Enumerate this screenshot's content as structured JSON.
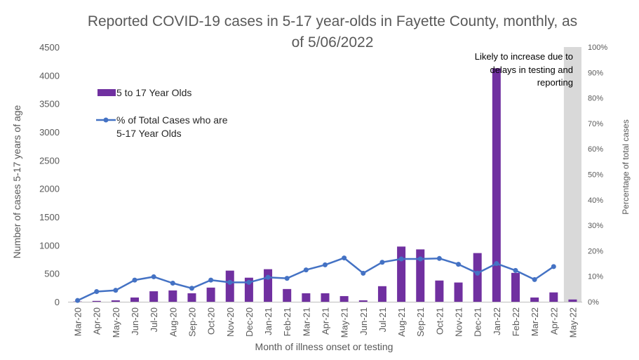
{
  "chart_data": {
    "type": "bar",
    "title_line1": "Reported COVID-19 cases in 5-17 year-olds in Fayette County, monthly, as",
    "title_line2": "of 5/06/2022",
    "xlabel": "Month of illness onset or testing",
    "ylabel": "Number of cases 5-17 years of age",
    "y2label": "Percentage of total cases",
    "ylim": [
      0,
      4500
    ],
    "y2lim": [
      0,
      100
    ],
    "yticks": [
      "0",
      "500",
      "1000",
      "1500",
      "2000",
      "2500",
      "3000",
      "3500",
      "4000",
      "4500"
    ],
    "y2ticks": [
      "0%",
      "10%",
      "20%",
      "30%",
      "40%",
      "50%",
      "60%",
      "70%",
      "80%",
      "90%",
      "100%"
    ],
    "categories": [
      "Mar-20",
      "Apr-20",
      "May-20",
      "Jun-20",
      "Jul-20",
      "Aug-20",
      "Sep-20",
      "Oct-20",
      "Nov-20",
      "Dec-20",
      "Jan-21",
      "Feb-21",
      "Mar-21",
      "Apr-21",
      "May-21",
      "Jun-21",
      "Jul-21",
      "Aug-21",
      "Sep-21",
      "Oct-21",
      "Nov-21",
      "Dec-21",
      "Jan-22",
      "Feb-22",
      "Mar-22",
      "Apr-22",
      "May-22"
    ],
    "series": [
      {
        "name": "5 to 17 Year Olds",
        "kind": "bar",
        "axis": "left",
        "color": "#7030A0",
        "values": [
          5,
          15,
          25,
          75,
          185,
          200,
          150,
          250,
          550,
          425,
          575,
          225,
          150,
          150,
          100,
          25,
          275,
          975,
          925,
          375,
          340,
          860,
          4125,
          510,
          75,
          165,
          40
        ]
      },
      {
        "name_line1": "% of Total Cases who are",
        "name_line2": "5-17 Year Olds",
        "kind": "line",
        "axis": "right",
        "color": "#4472C4",
        "values": [
          0.5,
          4.0,
          4.5,
          8.5,
          9.8,
          7.3,
          5.3,
          8.5,
          7.6,
          7.6,
          9.6,
          9.2,
          12.5,
          14.5,
          17.2,
          11.2,
          15.5,
          16.8,
          16.8,
          17.0,
          14.7,
          11.2,
          15.0,
          12.3,
          8.7,
          13.8,
          null
        ]
      }
    ],
    "shaded_category": "May-22",
    "shade_color": "#D9D9D9",
    "annotation_lines": [
      "Likely to increase due to",
      "delays in testing and",
      "reporting"
    ],
    "legend_position": "upper-left inside plot",
    "grid": false
  }
}
